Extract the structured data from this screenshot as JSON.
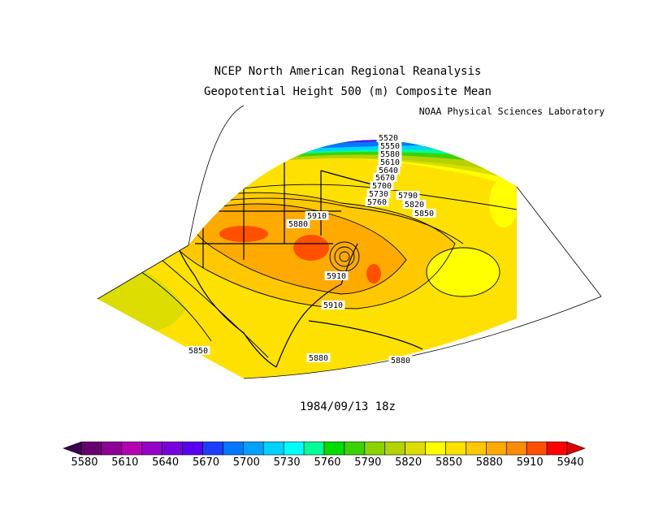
{
  "title_line1": "NCEP North American Regional Reanalysis",
  "title_line2": "Geopotential Height 500 (m) Composite Mean",
  "credit": "NOAA Physical Sciences Laboratory",
  "date": "1984/09/13 18z",
  "contour_labels": [
    "5520",
    "5550",
    "5580",
    "5610",
    "5640",
    "5670",
    "5700",
    "5730",
    "5760",
    "5790",
    "5820",
    "5850",
    "5880",
    "5910",
    "5910",
    "5910",
    "5850",
    "5880",
    "5880"
  ],
  "colorbar": {
    "tick_labels": [
      "5580",
      "5610",
      "5640",
      "5670",
      "5700",
      "5730",
      "5760",
      "5790",
      "5820",
      "5850",
      "5880",
      "5910",
      "5940"
    ],
    "colors": [
      "#3c0050",
      "#66006e",
      "#8c0096",
      "#b400b4",
      "#9600c8",
      "#7800dc",
      "#5a00f0",
      "#1e3cff",
      "#0078ff",
      "#00a0ff",
      "#00d2ff",
      "#00ffff",
      "#00ff96",
      "#00dc00",
      "#3cd200",
      "#8cd200",
      "#b4d200",
      "#dcdc00",
      "#ffff00",
      "#ffe100",
      "#ffc800",
      "#ffaa00",
      "#ff8c00",
      "#ff5000",
      "#ff0000",
      "#dc0000"
    ]
  }
}
